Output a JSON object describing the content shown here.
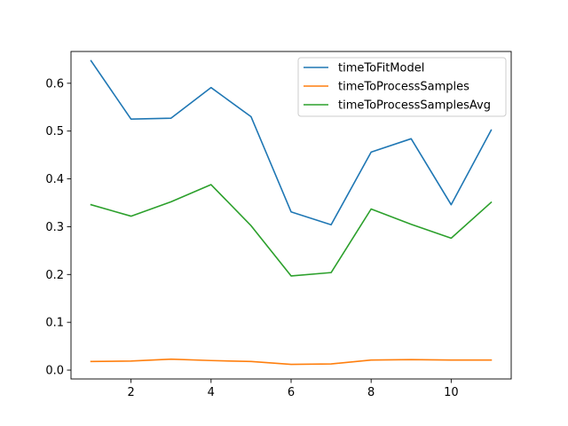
{
  "chart_data": {
    "type": "line",
    "title": "",
    "xlabel": "",
    "ylabel": "",
    "x": [
      1,
      2,
      3,
      4,
      5,
      6,
      7,
      8,
      9,
      10,
      11
    ],
    "xlim": [
      0.5,
      11.5
    ],
    "ylim": [
      -0.0185,
      0.6665
    ],
    "x_ticks": [
      2,
      4,
      6,
      8,
      10
    ],
    "y_ticks": [
      0.0,
      0.1,
      0.2,
      0.3,
      0.4,
      0.5,
      0.6
    ],
    "x_tick_labels": [
      "2",
      "4",
      "6",
      "8",
      "10"
    ],
    "y_tick_labels": [
      "0.0",
      "0.1",
      "0.2",
      "0.3",
      "0.4",
      "0.5",
      "0.6"
    ],
    "grid": false,
    "legend_position": "top-right",
    "series": [
      {
        "name": "timeToFitModel",
        "color": "#1f77b4",
        "values": [
          0.647,
          0.525,
          0.527,
          0.591,
          0.53,
          0.331,
          0.304,
          0.456,
          0.484,
          0.346,
          0.502
        ]
      },
      {
        "name": "timeToProcessSamples",
        "color": "#ff7f0e",
        "values": [
          0.018,
          0.019,
          0.023,
          0.02,
          0.018,
          0.012,
          0.013,
          0.021,
          0.022,
          0.021,
          0.021
        ]
      },
      {
        "name": "timeToProcessSamplesAvg",
        "color": "#2ca02c",
        "values": [
          0.346,
          0.322,
          0.352,
          0.388,
          0.302,
          0.197,
          0.204,
          0.337,
          0.305,
          0.276,
          0.351
        ]
      }
    ]
  }
}
